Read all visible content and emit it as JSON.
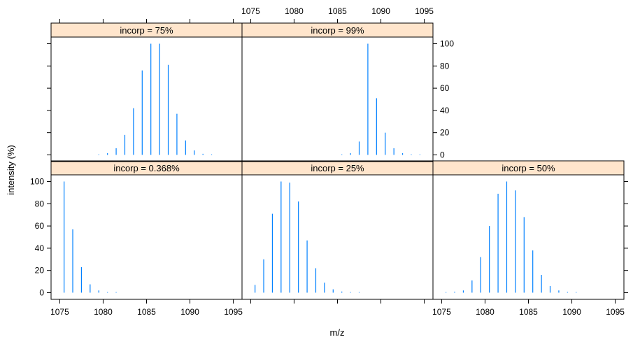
{
  "chart_data": {
    "type": "bar",
    "title": "",
    "xlabel": "m/z",
    "ylabel": "intensity (%)",
    "xlim": [
      1074,
      1096
    ],
    "ylim": [
      -6,
      106
    ],
    "x_ticks": [
      1075,
      1080,
      1085,
      1090,
      1095
    ],
    "y_ticks": [
      0,
      20,
      40,
      60,
      80,
      100
    ],
    "colors": {
      "bar": "#0080ff",
      "strip": "#ffe5cc",
      "frame": "#000000"
    },
    "panels": [
      {
        "label": "incorp = 0.368%",
        "x": [
          1075.5,
          1076.5,
          1077.5,
          1078.5,
          1079.5,
          1080.5,
          1081.5
        ],
        "values": [
          100,
          57,
          23,
          7.5,
          2,
          0.5,
          0.1
        ]
      },
      {
        "label": "incorp = 25%",
        "x": [
          1075.5,
          1076.5,
          1077.5,
          1078.5,
          1079.5,
          1080.5,
          1081.5,
          1082.5,
          1083.5,
          1084.5,
          1085.5,
          1086.5,
          1087.5
        ],
        "values": [
          7,
          30,
          71,
          100,
          99,
          82,
          47,
          22,
          9,
          3,
          1,
          0.3,
          0.1
        ]
      },
      {
        "label": "incorp = 50%",
        "x": [
          1075.5,
          1076.5,
          1077.5,
          1078.5,
          1079.5,
          1080.5,
          1081.5,
          1082.5,
          1083.5,
          1084.5,
          1085.5,
          1086.5,
          1087.5,
          1088.5,
          1089.5,
          1090.5
        ],
        "values": [
          0.3,
          0.8,
          2,
          11,
          32,
          60,
          89,
          100,
          92,
          68,
          38,
          16,
          6,
          2,
          0.6,
          0.2
        ]
      },
      {
        "label": "incorp = 75%",
        "x": [
          1079.5,
          1080.5,
          1081.5,
          1082.5,
          1083.5,
          1084.5,
          1085.5,
          1086.5,
          1087.5,
          1088.5,
          1089.5,
          1090.5,
          1091.5,
          1092.5
        ],
        "values": [
          0.3,
          1.5,
          6,
          18,
          42,
          76,
          100,
          100,
          81,
          37,
          13,
          4,
          1,
          0.3
        ]
      },
      {
        "label": "incorp = 99%",
        "x": [
          1085.5,
          1086.5,
          1087.5,
          1088.5,
          1089.5,
          1090.5,
          1091.5,
          1092.5,
          1093.5,
          1094.5
        ],
        "values": [
          0.3,
          1.5,
          12,
          100,
          51,
          20,
          6,
          1.5,
          0.4,
          0.1
        ]
      }
    ]
  }
}
